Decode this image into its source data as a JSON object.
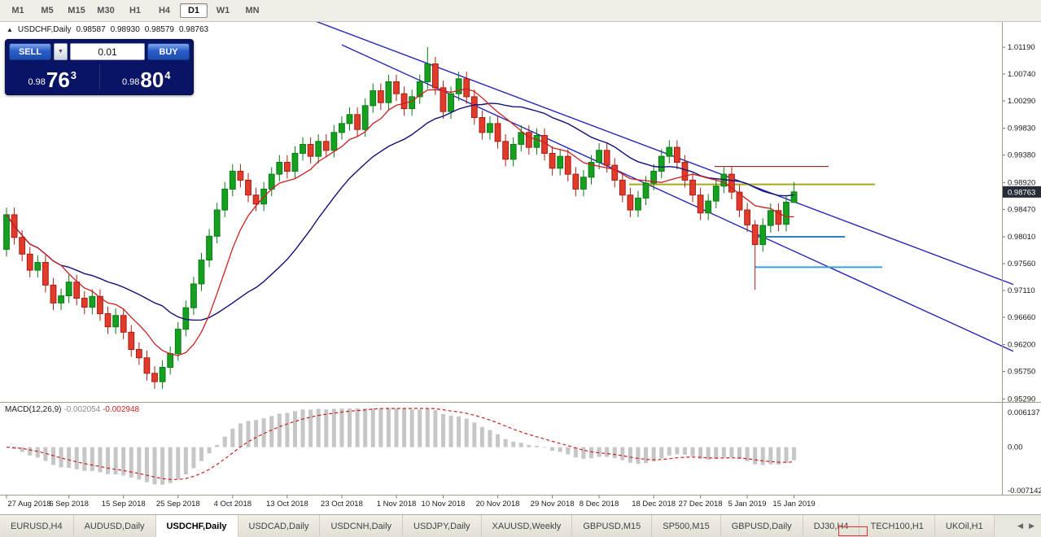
{
  "toolbar": {
    "timeframes": [
      "M1",
      "M5",
      "M15",
      "M30",
      "H1",
      "H4",
      "D1",
      "W1",
      "MN"
    ],
    "active": "D1"
  },
  "chart_header": {
    "symbol": "USDCHF,Daily",
    "open": "0.98587",
    "high": "0.98930",
    "low": "0.98579",
    "close": "0.98763"
  },
  "trade_panel": {
    "sell_label": "SELL",
    "buy_label": "BUY",
    "volume": "0.01",
    "sell_price": {
      "big": "0.98",
      "mid": "76",
      "sup": "3"
    },
    "buy_price": {
      "big": "0.98",
      "mid": "80",
      "sup": "4"
    }
  },
  "price_axis": {
    "labels": [
      "1.01190",
      "1.00740",
      "1.00290",
      "0.99830",
      "0.99380",
      "0.98920",
      "0.98470",
      "0.98010",
      "0.97560",
      "0.97110",
      "0.96660",
      "0.96200",
      "0.95750",
      "0.95290"
    ],
    "current": "0.98763"
  },
  "indicator": {
    "name": "MACD(12,26,9)",
    "value_main": "-0.002054",
    "value_signal": "-0.002948",
    "axis": {
      "top": "0.006137",
      "zero": "0.00",
      "bottom": "-0.007142"
    }
  },
  "x_axis": {
    "ticks": [
      {
        "i": 0,
        "label": "27 Aug 2018"
      },
      {
        "i": 8,
        "label": "6 Sep 2018"
      },
      {
        "i": 15,
        "label": "15 Sep 2018"
      },
      {
        "i": 22,
        "label": "25 Sep 2018"
      },
      {
        "i": 29,
        "label": "4 Oct 2018"
      },
      {
        "i": 36,
        "label": "13 Oct 2018"
      },
      {
        "i": 43,
        "label": "23 Oct 2018"
      },
      {
        "i": 50,
        "label": "1 Nov 2018"
      },
      {
        "i": 56,
        "label": "10 Nov 2018"
      },
      {
        "i": 63,
        "label": "20 Nov 2018"
      },
      {
        "i": 70,
        "label": "29 Nov 2018"
      },
      {
        "i": 76,
        "label": "8 Dec 2018"
      },
      {
        "i": 83,
        "label": "18 Dec 2018"
      },
      {
        "i": 89,
        "label": "27 Dec 2018"
      },
      {
        "i": 95,
        "label": "5 Jan 2019"
      },
      {
        "i": 101,
        "label": "15 Jan 2019"
      }
    ]
  },
  "tabs": {
    "active": "USDCHF,Daily",
    "items": [
      "EURUSD,H4",
      "AUDUSD,Daily",
      "USDCHF,Daily",
      "USDCAD,Daily",
      "USDCNH,Daily",
      "USDJPY,Daily",
      "XAUUSD,Weekly",
      "GBPUSD,M15",
      "SP500,M15",
      "GBPUSD,Daily",
      "DJ30,H4",
      "TECH100,H1",
      "UKOil,H1"
    ]
  },
  "chart_data": {
    "type": "candlestick",
    "symbol": "USDCHF",
    "timeframe": "Daily",
    "ylim": [
      0.9524,
      1.016
    ],
    "opens": [
      0.978,
      0.9838,
      0.98,
      0.9772,
      0.9745,
      0.9758,
      0.972,
      0.969,
      0.9702,
      0.9725,
      0.9698,
      0.9683,
      0.9701,
      0.9672,
      0.965,
      0.9669,
      0.9641,
      0.9612,
      0.9598,
      0.9572,
      0.9558,
      0.9582,
      0.9605,
      0.9646,
      0.9682,
      0.9722,
      0.9762,
      0.9802,
      0.9846,
      0.9881,
      0.9911,
      0.9896,
      0.9871,
      0.9856,
      0.9881,
      0.9906,
      0.9926,
      0.9911,
      0.9941,
      0.9956,
      0.9936,
      0.9961,
      0.9946,
      0.9976,
      0.9991,
      1.0006,
      0.9981,
      1.0021,
      1.0046,
      1.0026,
      1.0061,
      1.0041,
      1.0016,
      1.0036,
      1.0061,
      1.0091,
      1.0051,
      1.0011,
      1.0041,
      1.0066,
      1.0036,
      1.0001,
      0.9976,
      0.9991,
      0.9961,
      0.9931,
      0.9956,
      0.9976,
      0.9951,
      0.9971,
      0.9941,
      0.9916,
      0.9936,
      0.9906,
      0.9881,
      0.9901,
      0.9926,
      0.9946,
      0.9921,
      0.9896,
      0.9871,
      0.9846,
      0.9866,
      0.9891,
      0.9911,
      0.9936,
      0.9951,
      0.9926,
      0.9896,
      0.9871,
      0.9841,
      0.9861,
      0.9886,
      0.9906,
      0.9876,
      0.9846,
      0.9821,
      0.9788,
      0.982,
      0.9845,
      0.9822,
      0.98587
    ],
    "highs": [
      0.985,
      0.985,
      0.9812,
      0.9784,
      0.977,
      0.977,
      0.9732,
      0.9714,
      0.9737,
      0.9737,
      0.971,
      0.9713,
      0.9713,
      0.9684,
      0.9681,
      0.9681,
      0.9653,
      0.9624,
      0.961,
      0.9584,
      0.9594,
      0.9617,
      0.9658,
      0.9694,
      0.9734,
      0.9774,
      0.9814,
      0.9858,
      0.9893,
      0.9923,
      0.9923,
      0.9908,
      0.9883,
      0.9893,
      0.9918,
      0.9938,
      0.9938,
      0.9953,
      0.9968,
      0.9968,
      0.9973,
      0.9973,
      0.9988,
      1.0003,
      1.0018,
      1.0018,
      1.0033,
      1.0058,
      1.0058,
      1.0073,
      1.0073,
      1.0053,
      1.0048,
      1.0073,
      1.0119,
      1.0103,
      1.0063,
      1.0053,
      1.0078,
      1.0078,
      1.0048,
      1.0013,
      1.0003,
      1.0003,
      0.9973,
      0.9968,
      0.9988,
      0.9988,
      0.9983,
      0.9983,
      0.9953,
      0.9948,
      0.9948,
      0.9918,
      0.9913,
      0.9938,
      0.9958,
      0.9958,
      0.9933,
      0.9908,
      0.9883,
      0.9878,
      0.9903,
      0.9923,
      0.9948,
      0.9963,
      0.9963,
      0.9938,
      0.9908,
      0.9883,
      0.9873,
      0.9898,
      0.9918,
      0.9918,
      0.9888,
      0.9858,
      0.9829,
      0.9832,
      0.9857,
      0.9857,
      0.9871,
      0.9893
    ],
    "lows": [
      0.9768,
      0.9788,
      0.976,
      0.9733,
      0.9733,
      0.9708,
      0.9678,
      0.9678,
      0.969,
      0.9686,
      0.9671,
      0.9671,
      0.966,
      0.9638,
      0.9638,
      0.9629,
      0.96,
      0.9586,
      0.956,
      0.9546,
      0.9546,
      0.957,
      0.9593,
      0.9634,
      0.967,
      0.971,
      0.975,
      0.979,
      0.9834,
      0.9869,
      0.9884,
      0.9859,
      0.9844,
      0.9844,
      0.9869,
      0.9894,
      0.9899,
      0.9899,
      0.9929,
      0.9924,
      0.9924,
      0.9934,
      0.9934,
      0.9964,
      0.9979,
      0.9969,
      0.9969,
      1.0009,
      1.0014,
      1.0014,
      1.0029,
      1.0004,
      1.0004,
      1.0024,
      1.0049,
      1.0039,
      0.9999,
      0.9999,
      1.0029,
      1.0024,
      0.9989,
      0.9964,
      0.9964,
      0.9949,
      0.9919,
      0.9919,
      0.9944,
      0.9939,
      0.9939,
      0.9929,
      0.9904,
      0.9904,
      0.9894,
      0.9869,
      0.9869,
      0.9889,
      0.9914,
      0.9909,
      0.9884,
      0.9859,
      0.9834,
      0.9834,
      0.9854,
      0.9879,
      0.9899,
      0.9924,
      0.9914,
      0.9884,
      0.9859,
      0.9829,
      0.9829,
      0.9849,
      0.9874,
      0.9864,
      0.9834,
      0.9809,
      0.9712,
      0.9776,
      0.9808,
      0.981,
      0.981,
      0.98579
    ],
    "closes": [
      0.9838,
      0.98,
      0.9772,
      0.9745,
      0.9758,
      0.972,
      0.969,
      0.9702,
      0.9725,
      0.9698,
      0.9683,
      0.9701,
      0.9672,
      0.965,
      0.9669,
      0.9641,
      0.9612,
      0.9598,
      0.9572,
      0.9558,
      0.9582,
      0.9605,
      0.9646,
      0.9682,
      0.9722,
      0.9762,
      0.9802,
      0.9846,
      0.9881,
      0.9911,
      0.9896,
      0.9871,
      0.9856,
      0.9881,
      0.9906,
      0.9926,
      0.9911,
      0.9941,
      0.9956,
      0.9936,
      0.9961,
      0.9946,
      0.9976,
      0.9991,
      1.0006,
      0.9981,
      1.0021,
      1.0046,
      1.0026,
      1.0061,
      1.0041,
      1.0016,
      1.0036,
      1.0061,
      1.0091,
      1.0051,
      1.0011,
      1.0041,
      1.0066,
      1.0036,
      1.0001,
      0.9976,
      0.9991,
      0.9961,
      0.9931,
      0.9956,
      0.9976,
      0.9951,
      0.9971,
      0.9941,
      0.9916,
      0.9936,
      0.9906,
      0.9881,
      0.9901,
      0.9926,
      0.9946,
      0.9921,
      0.9896,
      0.9871,
      0.9846,
      0.9866,
      0.9891,
      0.9911,
      0.9936,
      0.9951,
      0.9926,
      0.9896,
      0.9871,
      0.9841,
      0.9861,
      0.9886,
      0.9906,
      0.9876,
      0.9846,
      0.9821,
      0.9788,
      0.982,
      0.9845,
      0.9822,
      0.9859,
      0.98763
    ],
    "candle_up_color": "#15a01f",
    "candle_down_color": "#e23b2c",
    "overlays": {
      "ma_fast_period": 8,
      "ma_fast_color": "#cc2020",
      "ma_slow_period": 21,
      "ma_slow_color": "#101078"
    },
    "macd": {
      "fast": 12,
      "slow": 26,
      "signal_period": 9,
      "range": [
        -0.007142,
        0.006137
      ],
      "histogram_color": "#c6c6c6",
      "signal_color": "#cc2222"
    },
    "trendlines": [
      {
        "x1": 385,
        "p1": 1.0164,
        "x2": 1245,
        "p2": 0.9721,
        "color": "#2626b8"
      },
      {
        "x1": 420,
        "p1": 1.0123,
        "x2": 1245,
        "p2": 0.9609,
        "color": "#2626b8"
      }
    ],
    "hlines": [
      {
        "price": 0.9919,
        "x1": 878,
        "x2": 1018,
        "color": "#8b2727",
        "width": 1.2
      },
      {
        "price": 0.9889,
        "x1": 773,
        "x2": 1075,
        "color": "#a8a81e",
        "width": 2
      },
      {
        "price": 0.9801,
        "x1": 928,
        "x2": 1038,
        "color": "#2f7fc0",
        "width": 2
      },
      {
        "price": 0.975,
        "x1": 928,
        "x2": 1084,
        "color": "#3f9fd8",
        "width": 2
      }
    ]
  }
}
